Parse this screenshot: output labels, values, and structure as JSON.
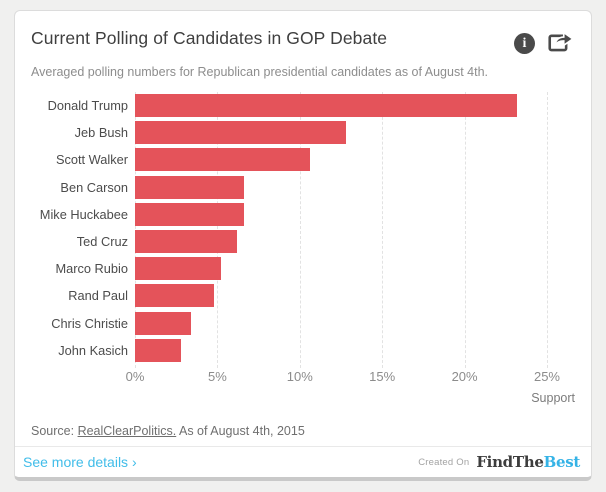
{
  "card": {
    "title": "Current Polling of Candidates in GOP Debate",
    "subtitle": "Averaged polling numbers for Republican presidential candidates as of August 4th."
  },
  "icons": {
    "info": "info-icon",
    "share": "share-icon"
  },
  "chart_data": {
    "type": "bar",
    "orientation": "horizontal",
    "categories": [
      "Donald Trump",
      "Jeb Bush",
      "Scott Walker",
      "Ben Carson",
      "Mike Huckabee",
      "Ted Cruz",
      "Marco Rubio",
      "Rand Paul",
      "Chris Christie",
      "John Kasich"
    ],
    "values": [
      23.2,
      12.8,
      10.6,
      6.6,
      6.6,
      6.2,
      5.2,
      4.8,
      3.4,
      2.8
    ],
    "value_unit": "%",
    "xlabel": "Support",
    "x_ticks": [
      "0%",
      "5%",
      "10%",
      "15%",
      "20%",
      "25%"
    ],
    "x_tick_values": [
      0,
      5,
      10,
      15,
      20,
      25
    ],
    "xlim": [
      0,
      26.7
    ],
    "grid": "dashed-vertical",
    "legend": "none",
    "bar_color": "#e4535a"
  },
  "footer": {
    "source_prefix": "Source: ",
    "source_link": "RealClearPolitics.",
    "source_suffix": " As of August 4th, 2015",
    "see_more": "See more details ›",
    "created_on": "Created On",
    "brand_dark": "FindThe",
    "brand_accent": "Best"
  },
  "colors": {
    "bar": "#e4535a",
    "link_blue": "#41bde9",
    "brand_blue": "#35b3e6",
    "icon_gray": "#4a4a4a"
  }
}
